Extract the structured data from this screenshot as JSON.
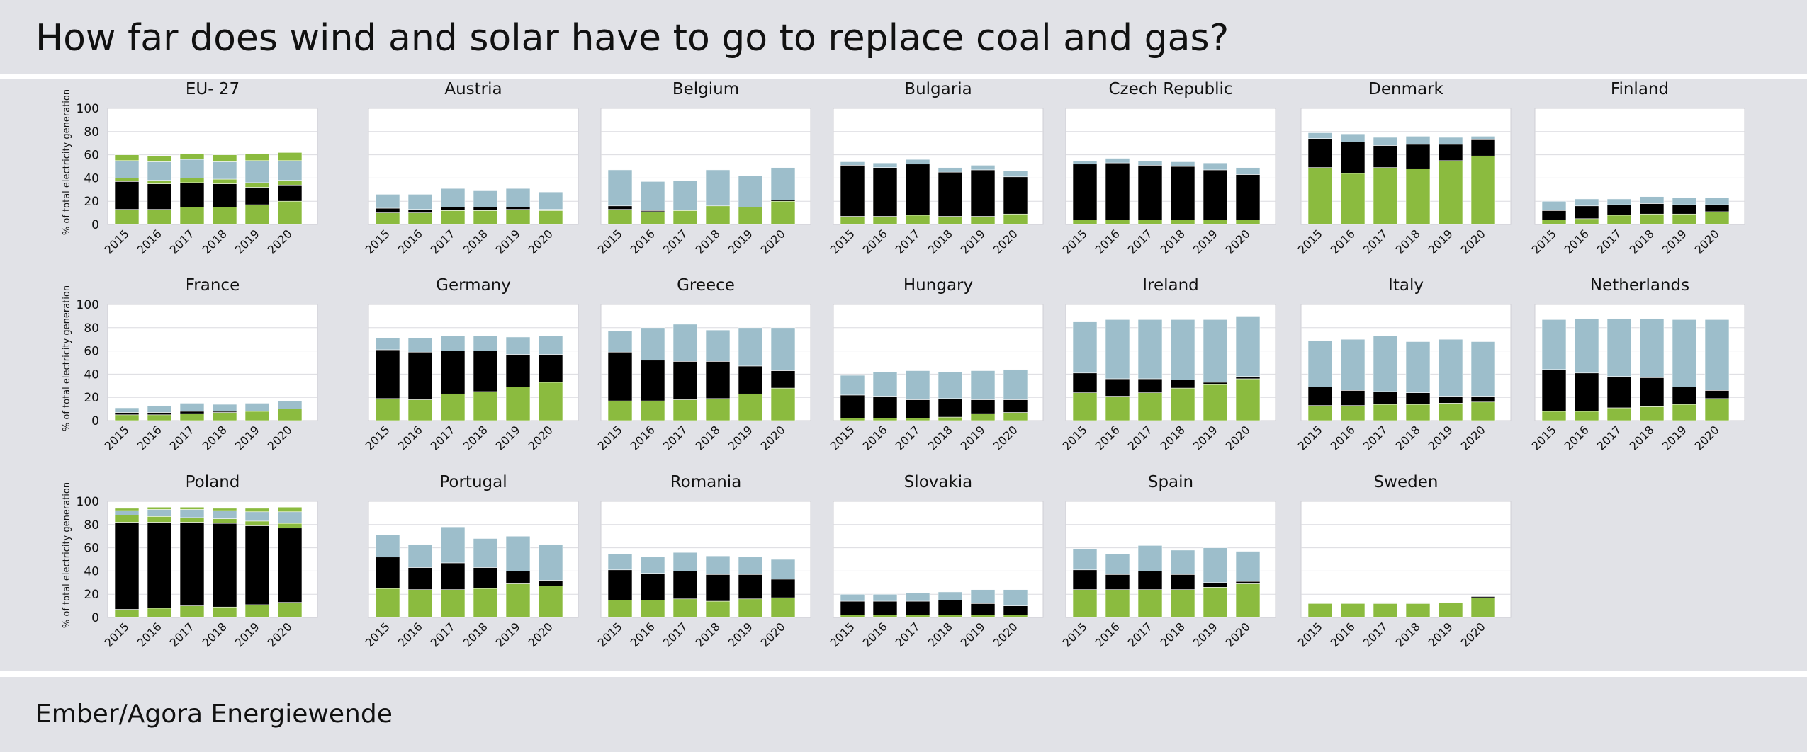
{
  "title": "How far does wind and solar have to go to replace coal and gas?",
  "source": "Ember/Agora Energiewende",
  "colors": {
    "wind_solar": "#8bbb3f",
    "coal": "#000000",
    "gas": "#9dbecb",
    "other": "#9dbecb"
  },
  "chart_data": {
    "type": "bar",
    "stacked": true,
    "ylabel": "% of total electricity generation",
    "ylim": [
      0,
      100
    ],
    "yticks": [
      0,
      20,
      40,
      60,
      80,
      100
    ],
    "categories": [
      "2015",
      "2016",
      "2017",
      "2018",
      "2019",
      "2020"
    ],
    "grid": true,
    "panels": [
      {
        "title": "EU- 27",
        "wind_solar": [
          13,
          13,
          15,
          15,
          17,
          20
        ],
        "coal": [
          24,
          22,
          21,
          20,
          15,
          14
        ],
        "gas": [
          15,
          16,
          16,
          15,
          19,
          17
        ],
        "other_lower": [
          3,
          3,
          4,
          4,
          4,
          4
        ],
        "other_upper": [
          5,
          5,
          5,
          6,
          6,
          7
        ]
      },
      {
        "title": "Austria",
        "wind_solar": [
          10,
          10,
          12,
          12,
          13,
          12
        ],
        "coal": [
          4,
          3,
          3,
          3,
          2,
          1
        ],
        "gas": [
          12,
          13,
          16,
          14,
          16,
          15
        ]
      },
      {
        "title": "Belgium",
        "wind_solar": [
          13,
          11,
          12,
          16,
          15,
          20
        ],
        "coal": [
          3,
          1,
          0,
          0,
          0,
          1
        ],
        "gas": [
          31,
          25,
          26,
          31,
          27,
          28
        ]
      },
      {
        "title": "Bulgaria",
        "wind_solar": [
          7,
          7,
          8,
          7,
          7,
          9
        ],
        "coal": [
          44,
          42,
          44,
          38,
          40,
          32
        ],
        "gas": [
          3,
          4,
          4,
          4,
          4,
          5
        ]
      },
      {
        "title": "Czech Republic",
        "wind_solar": [
          4,
          4,
          4,
          4,
          4,
          4
        ],
        "coal": [
          48,
          49,
          47,
          46,
          43,
          39
        ],
        "gas": [
          3,
          4,
          4,
          4,
          6,
          6
        ]
      },
      {
        "title": "Denmark",
        "wind_solar": [
          49,
          44,
          49,
          48,
          55,
          59
        ],
        "coal": [
          25,
          27,
          19,
          21,
          14,
          14
        ],
        "gas": [
          5,
          7,
          7,
          7,
          6,
          3
        ]
      },
      {
        "title": "Finland",
        "wind_solar": [
          4,
          5,
          8,
          9,
          9,
          11
        ],
        "coal": [
          8,
          11,
          9,
          9,
          8,
          6
        ],
        "gas": [
          8,
          6,
          5,
          6,
          6,
          6
        ]
      },
      {
        "title": "France",
        "wind_solar": [
          5,
          5,
          6,
          7,
          8,
          10
        ],
        "coal": [
          2,
          2,
          2,
          1,
          0,
          0
        ],
        "gas": [
          4,
          6,
          7,
          6,
          7,
          7
        ]
      },
      {
        "title": "Germany",
        "wind_solar": [
          19,
          18,
          23,
          25,
          29,
          33
        ],
        "coal": [
          42,
          41,
          37,
          35,
          28,
          24
        ],
        "gas": [
          10,
          12,
          13,
          13,
          15,
          16
        ]
      },
      {
        "title": "Greece",
        "wind_solar": [
          17,
          17,
          18,
          19,
          23,
          28
        ],
        "coal": [
          42,
          35,
          33,
          32,
          24,
          15
        ],
        "gas": [
          18,
          28,
          32,
          27,
          33,
          37
        ]
      },
      {
        "title": "Hungary",
        "wind_solar": [
          2,
          2,
          2,
          3,
          6,
          7
        ],
        "coal": [
          20,
          19,
          16,
          16,
          12,
          11
        ],
        "gas": [
          17,
          21,
          25,
          23,
          25,
          26
        ]
      },
      {
        "title": "Ireland",
        "wind_solar": [
          24,
          21,
          24,
          28,
          31,
          36
        ],
        "coal": [
          17,
          15,
          12,
          7,
          2,
          2
        ],
        "gas": [
          44,
          51,
          51,
          52,
          54,
          52
        ]
      },
      {
        "title": "Italy",
        "wind_solar": [
          13,
          13,
          14,
          14,
          15,
          16
        ],
        "coal": [
          16,
          13,
          11,
          10,
          6,
          5
        ],
        "gas": [
          40,
          44,
          48,
          44,
          49,
          47
        ]
      },
      {
        "title": "Netherlands",
        "wind_solar": [
          8,
          8,
          11,
          12,
          14,
          19
        ],
        "coal": [
          36,
          33,
          27,
          25,
          15,
          7
        ],
        "gas": [
          43,
          47,
          50,
          51,
          58,
          61
        ]
      },
      {
        "title": "Poland",
        "wind_solar": [
          7,
          8,
          10,
          9,
          11,
          13
        ],
        "coal": [
          75,
          74,
          72,
          72,
          68,
          64
        ],
        "gas": [
          4,
          6,
          7,
          7,
          8,
          10
        ],
        "other_lower": [
          6,
          5,
          4,
          4,
          4,
          4
        ],
        "other_upper": [
          2,
          2,
          2,
          2,
          3,
          4
        ]
      },
      {
        "title": "Portugal",
        "wind_solar": [
          25,
          24,
          24,
          25,
          29,
          27
        ],
        "coal": [
          27,
          19,
          23,
          18,
          11,
          5
        ],
        "gas": [
          19,
          20,
          31,
          25,
          30,
          31
        ]
      },
      {
        "title": "Romania",
        "wind_solar": [
          15,
          15,
          16,
          14,
          16,
          17
        ],
        "coal": [
          26,
          23,
          24,
          23,
          21,
          16
        ],
        "gas": [
          14,
          14,
          16,
          16,
          15,
          17
        ]
      },
      {
        "title": "Slovakia",
        "wind_solar": [
          2,
          2,
          2,
          2,
          2,
          2
        ],
        "coal": [
          12,
          12,
          12,
          13,
          10,
          8
        ],
        "gas": [
          6,
          6,
          7,
          7,
          12,
          14
        ]
      },
      {
        "title": "Spain",
        "wind_solar": [
          24,
          24,
          24,
          24,
          26,
          29
        ],
        "coal": [
          17,
          13,
          16,
          13,
          4,
          2
        ],
        "gas": [
          18,
          18,
          22,
          21,
          30,
          26
        ]
      },
      {
        "title": "Sweden",
        "wind_solar": [
          12,
          12,
          12,
          12,
          13,
          17
        ],
        "coal": [
          0,
          0,
          1,
          1,
          0,
          1
        ],
        "gas": [
          0,
          0,
          0,
          0,
          0,
          0
        ]
      }
    ]
  }
}
